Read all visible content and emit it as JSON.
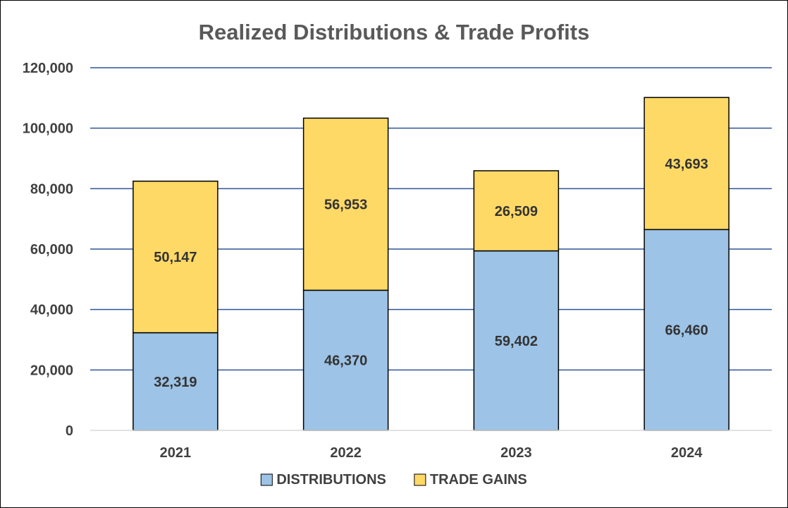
{
  "chart_data": {
    "type": "bar",
    "stacked": true,
    "title": "Realized Distributions & Trade Profits",
    "xlabel": "",
    "ylabel": "",
    "categories": [
      "2021",
      "2022",
      "2023",
      "2024"
    ],
    "series": [
      {
        "name": "DISTRIBUTIONS",
        "values": [
          32319,
          46370,
          59402,
          66460
        ],
        "color": "#9DC3E6"
      },
      {
        "name": "TRADE GAINS",
        "values": [
          50147,
          56953,
          26509,
          43693
        ],
        "color": "#FFD966"
      }
    ],
    "ylim": [
      0,
      120000
    ],
    "yticks": [
      0,
      20000,
      40000,
      60000,
      80000,
      100000,
      120000
    ],
    "ytick_labels": [
      "0",
      "20,000",
      "40,000",
      "60,000",
      "80,000",
      "100,000",
      "120,000"
    ],
    "data_labels": [
      [
        "32,319",
        "46,370",
        "59,402",
        "66,460"
      ],
      [
        "50,147",
        "56,953",
        "26,509",
        "43,693"
      ]
    ],
    "grid": true,
    "gridline_color": "#2F5597",
    "legend_position": "bottom"
  }
}
